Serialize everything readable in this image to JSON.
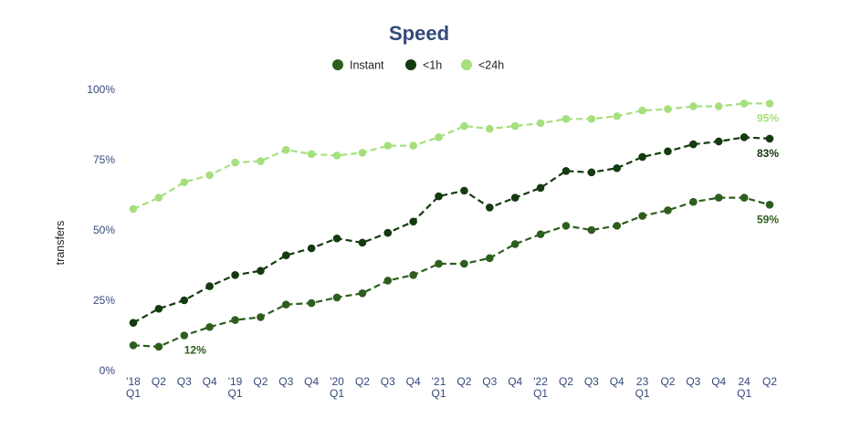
{
  "chart_data": {
    "type": "line",
    "title": "Speed",
    "ylabel": "transfers",
    "xlabel": "",
    "ylim": [
      0,
      100
    ],
    "yticks": [
      "0%",
      "25%",
      "50%",
      "75%",
      "100%"
    ],
    "ytick_values": [
      0,
      25,
      50,
      75,
      100
    ],
    "x_tick_labels": [
      [
        "'18",
        "Q1"
      ],
      [
        "Q2"
      ],
      [
        "Q3"
      ],
      [
        "Q4"
      ],
      [
        "'19",
        "Q1"
      ],
      [
        "Q2"
      ],
      [
        "Q3"
      ],
      [
        "Q4"
      ],
      [
        "'20",
        "Q1"
      ],
      [
        "Q2"
      ],
      [
        "Q3"
      ],
      [
        "Q4"
      ],
      [
        "'21",
        "Q1"
      ],
      [
        "Q2"
      ],
      [
        "Q3"
      ],
      [
        "Q4"
      ],
      [
        "'22",
        "Q1"
      ],
      [
        "Q2"
      ],
      [
        "Q3"
      ],
      [
        "Q4"
      ],
      [
        "23",
        "Q1"
      ],
      [
        "Q2"
      ],
      [
        "Q3"
      ],
      [
        "Q4"
      ],
      [
        "24",
        "Q1"
      ],
      [
        "Q2"
      ]
    ],
    "legend_position": "top-center",
    "grid": false,
    "series": [
      {
        "name": "Instant",
        "color": "#2e5e1e",
        "values": [
          9,
          8.5,
          12.5,
          15.5,
          18,
          19,
          23.5,
          24,
          26,
          27.5,
          32,
          34,
          38,
          38,
          40,
          45,
          48.5,
          51.5,
          50,
          51.5,
          55,
          57,
          60,
          61.5,
          61.5,
          59
        ]
      },
      {
        "name": "<1h",
        "color": "#143a0f",
        "values": [
          17,
          22,
          25,
          30,
          34,
          35.5,
          41,
          43.5,
          47,
          45.5,
          49,
          53,
          62,
          64,
          58,
          61.5,
          65,
          71,
          70.5,
          72,
          76,
          78,
          80.5,
          81.5,
          83,
          82.5
        ]
      },
      {
        "name": "<24h",
        "color": "#a6e07e",
        "values": [
          57.5,
          61.5,
          67,
          69.5,
          74,
          74.5,
          78.5,
          77,
          76.5,
          77.5,
          80,
          80,
          83,
          87,
          86,
          87,
          88,
          89.5,
          89.5,
          90.5,
          92.5,
          93,
          94,
          94,
          95,
          95
        ]
      }
    ],
    "annotations": [
      {
        "series": "Instant",
        "index": 2,
        "text": "12%",
        "placement": "below"
      },
      {
        "series": "Instant",
        "index": 25,
        "text": "59%",
        "placement": "below"
      },
      {
        "series": "<1h",
        "index": 25,
        "text": "83%",
        "placement": "below"
      },
      {
        "series": "<24h",
        "index": 25,
        "text": "95%",
        "placement": "below"
      }
    ]
  },
  "colors": {
    "title": "#34497a",
    "tick": "#34497a"
  }
}
